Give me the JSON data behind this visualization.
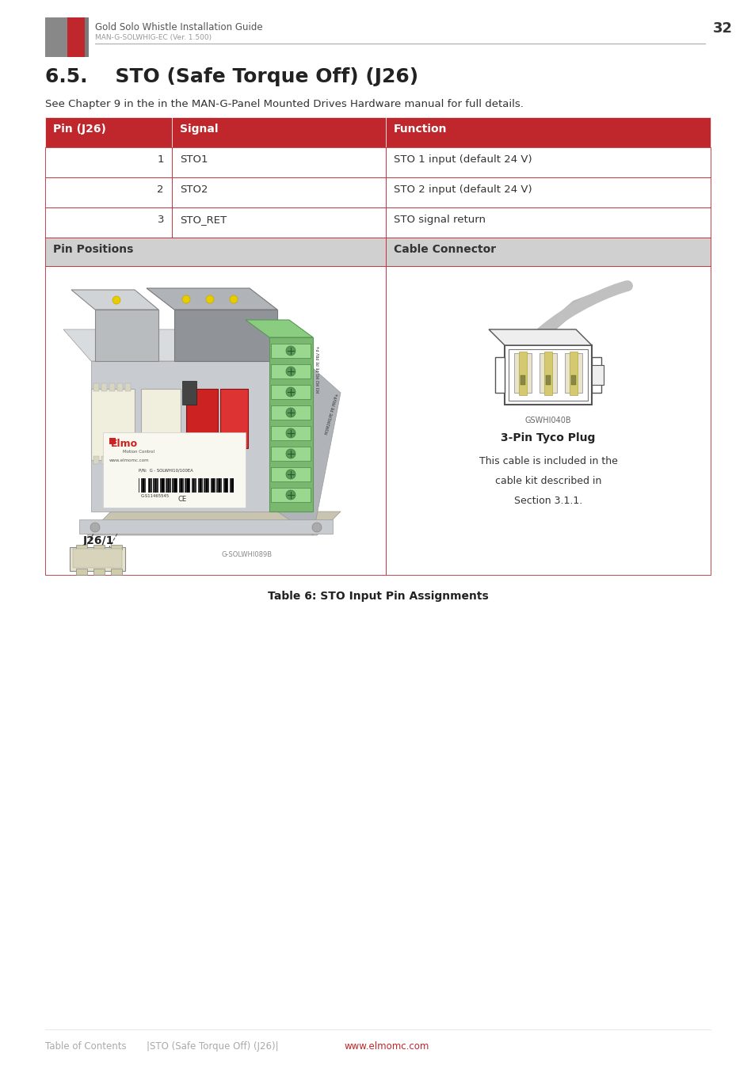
{
  "page_width": 9.54,
  "page_height": 13.5,
  "dpi": 100,
  "bg_color": "#ffffff",
  "header": {
    "logo_text": "Gold Solo Whistle Installation Guide",
    "sub_text": "MAN-G-SOLWHIG-EC (Ver. 1.500)",
    "page_num": "32"
  },
  "section_title": "6.5.    STO (Safe Torque Off) (J26)",
  "intro_text": "See Chapter 9 in the in the MAN-G-Panel Mounted Drives Hardware manual for full details.",
  "table": {
    "header_bg": "#c0272d",
    "header_text_color": "#ffffff",
    "border_color": "#c0272d",
    "alt_header_bg": "#d0d0d0",
    "col_headers": [
      "Pin (J26)",
      "Signal",
      "Function"
    ],
    "rows": [
      [
        "1",
        "STO1",
        "STO 1 input (default 24 V)"
      ],
      [
        "2",
        "STO2",
        "STO 2 input (default 24 V)"
      ],
      [
        "3",
        "STO_RET",
        "STO signal return"
      ]
    ],
    "image_row_headers": [
      "Pin Positions",
      "Cable Connector"
    ]
  },
  "caption": "Table 6: STO Input Pin Assignments",
  "footer": {
    "left_text": "Table of Contents",
    "middle_text": "|STO (Safe Torque Off) (J26)|",
    "link_text": "www.elmomc.com",
    "text_color": "#aaaaaa",
    "link_color": "#c0272d"
  }
}
